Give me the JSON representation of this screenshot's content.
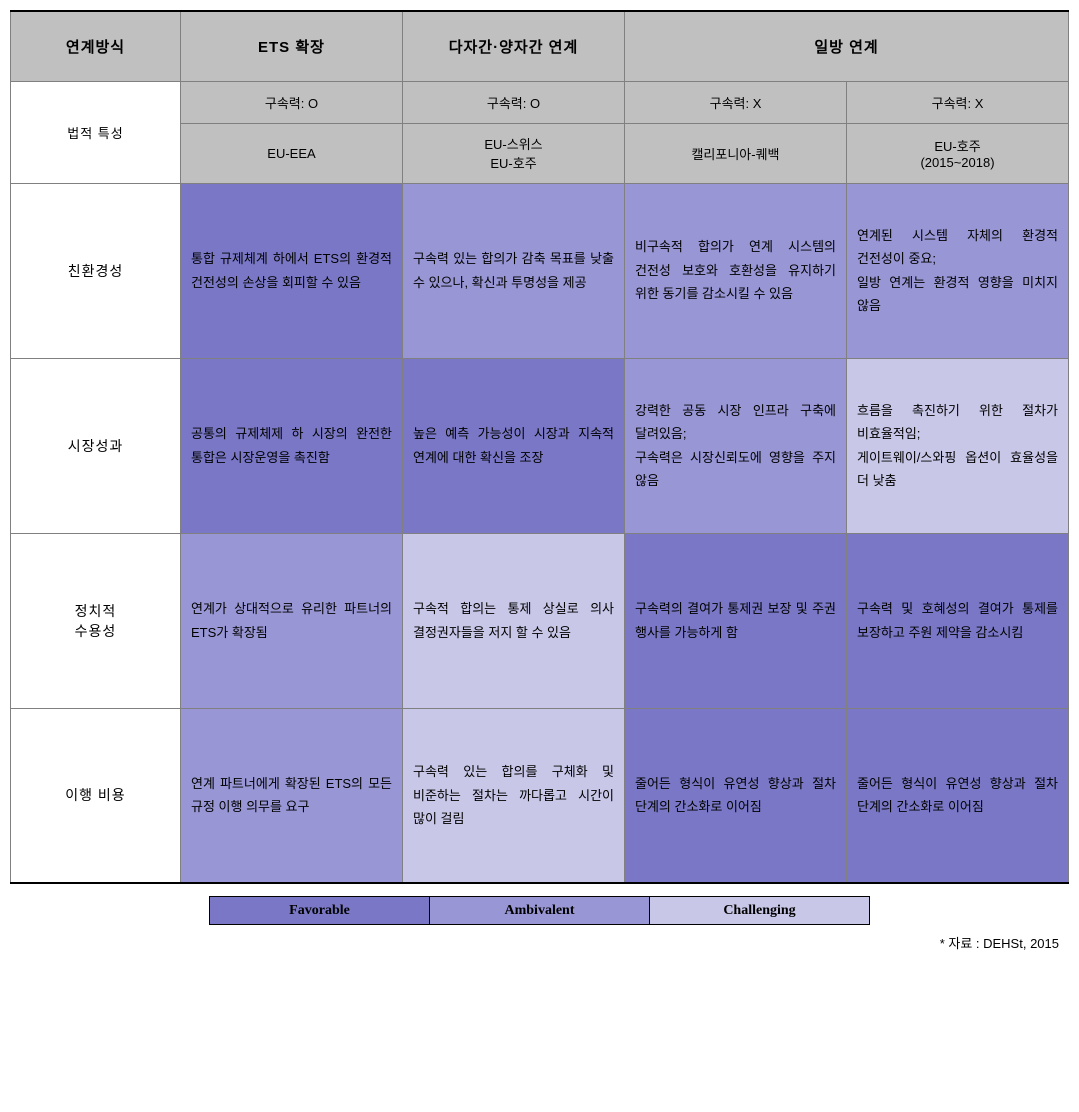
{
  "colors": {
    "favorable": "#7a78c6",
    "ambivalent": "#9896d5",
    "challenging": "#c8c7e8",
    "header_bg": "#c0c0c0",
    "border": "#808080"
  },
  "headers": {
    "linkage_method": "연계방식",
    "ets_expansion": "ETS 확장",
    "multilateral": "다자간·양자간 연계",
    "unilateral": "일방 연계"
  },
  "legal_row": {
    "label": "법적 특성",
    "binding_o1": "구속력: O",
    "binding_o2": "구속력: O",
    "binding_x1": "구속력: X",
    "binding_x2": "구속력: X",
    "example1": "EU-EEA",
    "example2": "EU-스위스\nEU-호주",
    "example3": "캘리포니아-퀘백",
    "example4": "EU-호주\n(2015~2018)"
  },
  "rows": [
    {
      "label": "친환경성",
      "cells": [
        {
          "text": "통합 규제체계 하에서 ETS의 환경적 건전성의 손상을 회피할 수 있음",
          "level": "favorable"
        },
        {
          "text": "구속력 있는 합의가 감축 목표를 낮출 수 있으나, 확신과 투명성을 제공",
          "level": "ambivalent"
        },
        {
          "text": "비구속적 합의가 연계 시스템의 건전성 보호와 호환성을 유지하기 위한 동기를 감소시킬 수 있음",
          "level": "ambivalent"
        },
        {
          "text": "연계된 시스템 자체의 환경적 건전성이 중요;\n 일방 연계는 환경적 영향을 미치지 않음",
          "level": "ambivalent"
        }
      ]
    },
    {
      "label": "시장성과",
      "cells": [
        {
          "text": "공통의 규제체제 하 시장의 완전한 통합은 시장운영을 촉진함",
          "level": "favorable"
        },
        {
          "text": "높은 예측 가능성이 시장과 지속적 연계에 대한 확신을 조장",
          "level": "favorable"
        },
        {
          "text": "강력한 공동 시장 인프라 구축에 달려있음;\n 구속력은 시장신뢰도에 영향을 주지 않음",
          "level": "ambivalent"
        },
        {
          "text": "흐름을 촉진하기 위한 절차가 비효율적임;\n 게이트웨이/스와핑 옵션이 효율성을 더 낮춤",
          "level": "challenging"
        }
      ]
    },
    {
      "label": "정치적\n수용성",
      "cells": [
        {
          "text": "연계가 상대적으로 유리한 파트너의 ETS가 확장됨",
          "level": "ambivalent"
        },
        {
          "text": "구속적 합의는 통제 상실로 의사 결정권자들을 저지 할 수 있음",
          "level": "challenging"
        },
        {
          "text": "구속력의 결여가 통제권 보장 및 주권 행사를 가능하게 함",
          "level": "favorable"
        },
        {
          "text": "구속력 및 호혜성의 결여가 통제를 보장하고 주원 제약을 감소시킴",
          "level": "favorable"
        }
      ]
    },
    {
      "label": "이행 비용",
      "cells": [
        {
          "text": "연계 파트너에게 확장된 ETS의 모든 규정 이행 의무를 요구",
          "level": "ambivalent"
        },
        {
          "text": "구속력 있는 합의를 구체화 및 비준하는 절차는 까다롭고 시간이 많이 걸림",
          "level": "challenging"
        },
        {
          "text": "줄어든 형식이 유연성 향상과 절차 단계의 간소화로 이어짐",
          "level": "favorable"
        },
        {
          "text": "줄어든 형식이 유연성 향상과 절차 단계의 간소화로 이어짐",
          "level": "favorable"
        }
      ]
    }
  ],
  "legend": {
    "favorable": "Favorable",
    "ambivalent": "Ambivalent",
    "challenging": "Challenging"
  },
  "source": "* 자료 : DEHSt, 2015"
}
